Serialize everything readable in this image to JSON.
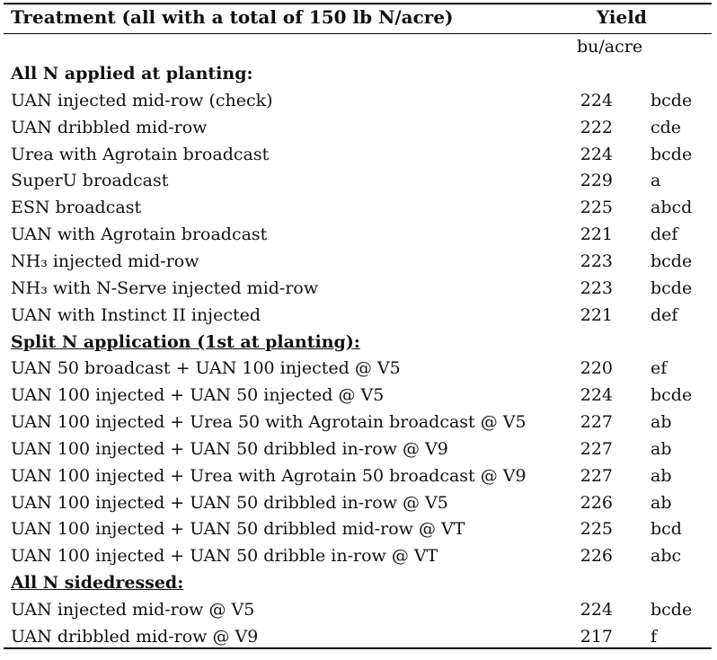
{
  "header": {
    "treatment": "Treatment (all with a total of 150 lb N/acre)",
    "yield": "Yield",
    "unit": "bu/acre"
  },
  "sections": [
    {
      "title": "All N applied at planting:",
      "underlined": false,
      "rows": [
        {
          "name": "UAN injected mid-row (check)",
          "yield": "224",
          "group": "bcde"
        },
        {
          "name": "UAN dribbled mid-row",
          "yield": "222",
          "group": "cde"
        },
        {
          "name": "Urea with Agrotain broadcast",
          "yield": "224",
          "group": "bcde"
        },
        {
          "name": "SuperU broadcast",
          "yield": "229",
          "group": "a"
        },
        {
          "name": "ESN broadcast",
          "yield": "225",
          "group": "abcd"
        },
        {
          "name": "UAN with Agrotain broadcast",
          "yield": "221",
          "group": "def"
        },
        {
          "name": "NH₃ injected mid-row",
          "yield": "223",
          "group": "bcde"
        },
        {
          "name": "NH₃ with N-Serve injected mid-row",
          "yield": "223",
          "group": "bcde"
        },
        {
          "name": "UAN with Instinct II injected",
          "yield": "221",
          "group": "def"
        }
      ]
    },
    {
      "title": "Split N application (1st at planting):",
      "underlined": true,
      "rows": [
        {
          "name": "UAN 50 broadcast + UAN 100 injected @ V5",
          "yield": "220",
          "group": "ef"
        },
        {
          "name": "UAN 100 injected + UAN 50 injected @ V5",
          "yield": "224",
          "group": "bcde"
        },
        {
          "name": "UAN 100 injected + Urea 50 with Agrotain broadcast @ V5",
          "yield": "227",
          "group": "ab"
        },
        {
          "name": "UAN 100 injected + UAN 50 dribbled in-row @ V9",
          "yield": "227",
          "group": "ab"
        },
        {
          "name": "UAN 100 injected + Urea with Agrotain 50 broadcast @ V9",
          "yield": "227",
          "group": "ab"
        },
        {
          "name": "UAN 100 injected + UAN 50 dribbled in-row @ V5",
          "yield": "226",
          "group": "ab"
        },
        {
          "name": "UAN 100 injected + UAN 50 dribbled mid-row @ VT",
          "yield": "225",
          "group": "bcd"
        },
        {
          "name": "UAN 100 injected + UAN 50 dribble in-row @ VT",
          "yield": "226",
          "group": "abc"
        }
      ]
    },
    {
      "title": "All N sidedressed:",
      "underlined": true,
      "rows": [
        {
          "name": "UAN injected mid-row @ V5",
          "yield": "224",
          "group": "bcde"
        },
        {
          "name": "UAN dribbled mid-row @ V9",
          "yield": "217",
          "group": "f"
        }
      ]
    }
  ]
}
